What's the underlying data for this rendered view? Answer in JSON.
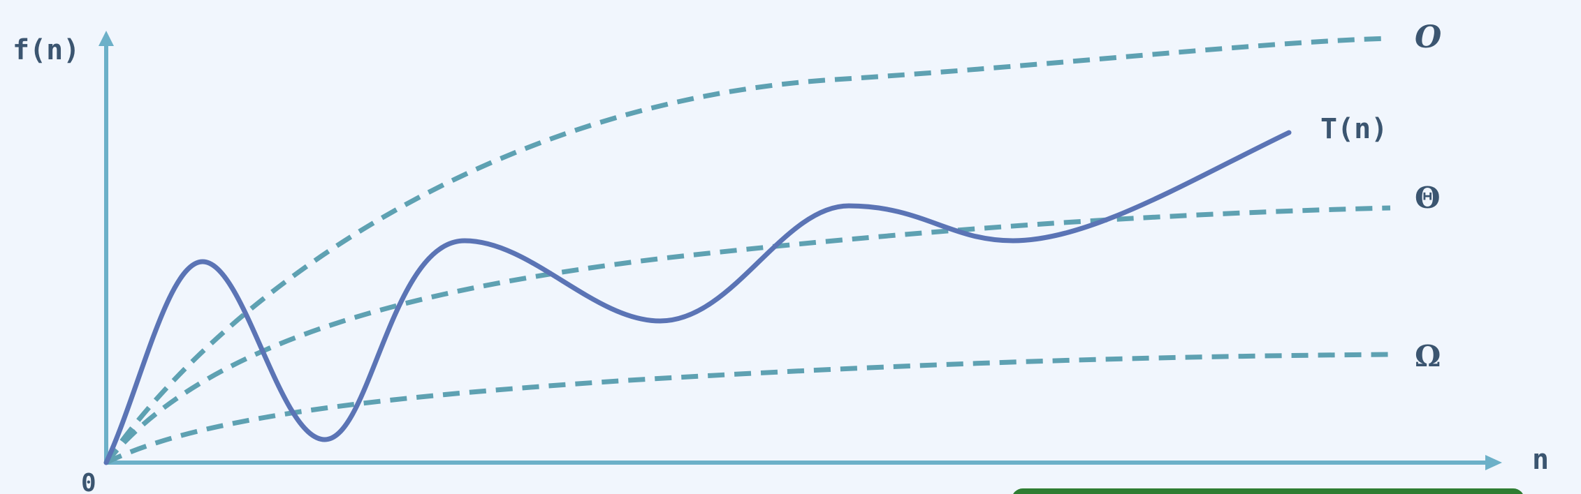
{
  "axes": {
    "y_label": "f(n)",
    "x_label": "n",
    "origin_label": "0"
  },
  "curves": {
    "big_o": {
      "label": "O",
      "style": "dashed"
    },
    "theta": {
      "label": "Θ",
      "style": "dashed"
    },
    "omega": {
      "label": "Ω",
      "style": "dashed"
    },
    "t_of_n": {
      "label": "T(n)",
      "style": "solid"
    }
  },
  "colors": {
    "background": "#f1f6fd",
    "axis": "#6cb0c8",
    "bound_curves": "#5ea1b2",
    "t_curve": "#5b74b5",
    "label_text": "#3b5570",
    "corner_accent": "#2e7d32"
  }
}
